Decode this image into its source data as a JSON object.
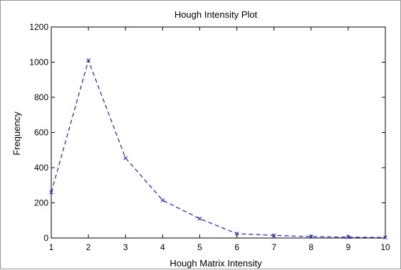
{
  "chart_data": {
    "type": "line",
    "title": "Hough Intensity Plot",
    "xlabel": "Hough Matrix Intensity",
    "ylabel": "Frequency",
    "xlim": [
      1,
      10
    ],
    "ylim": [
      0,
      1200
    ],
    "xticks": [
      1,
      2,
      3,
      4,
      5,
      6,
      7,
      8,
      9,
      10
    ],
    "yticks": [
      0,
      200,
      400,
      600,
      800,
      1000,
      1200
    ],
    "grid": false,
    "legend": "none",
    "series": [
      {
        "x": [
          1,
          2,
          3,
          4,
          5,
          6,
          7,
          8,
          9,
          10
        ],
        "y": [
          260,
          1010,
          455,
          215,
          110,
          25,
          15,
          8,
          5,
          3
        ],
        "line_style": "dashed",
        "marker": "x",
        "color": "#1f1fbf"
      }
    ]
  }
}
